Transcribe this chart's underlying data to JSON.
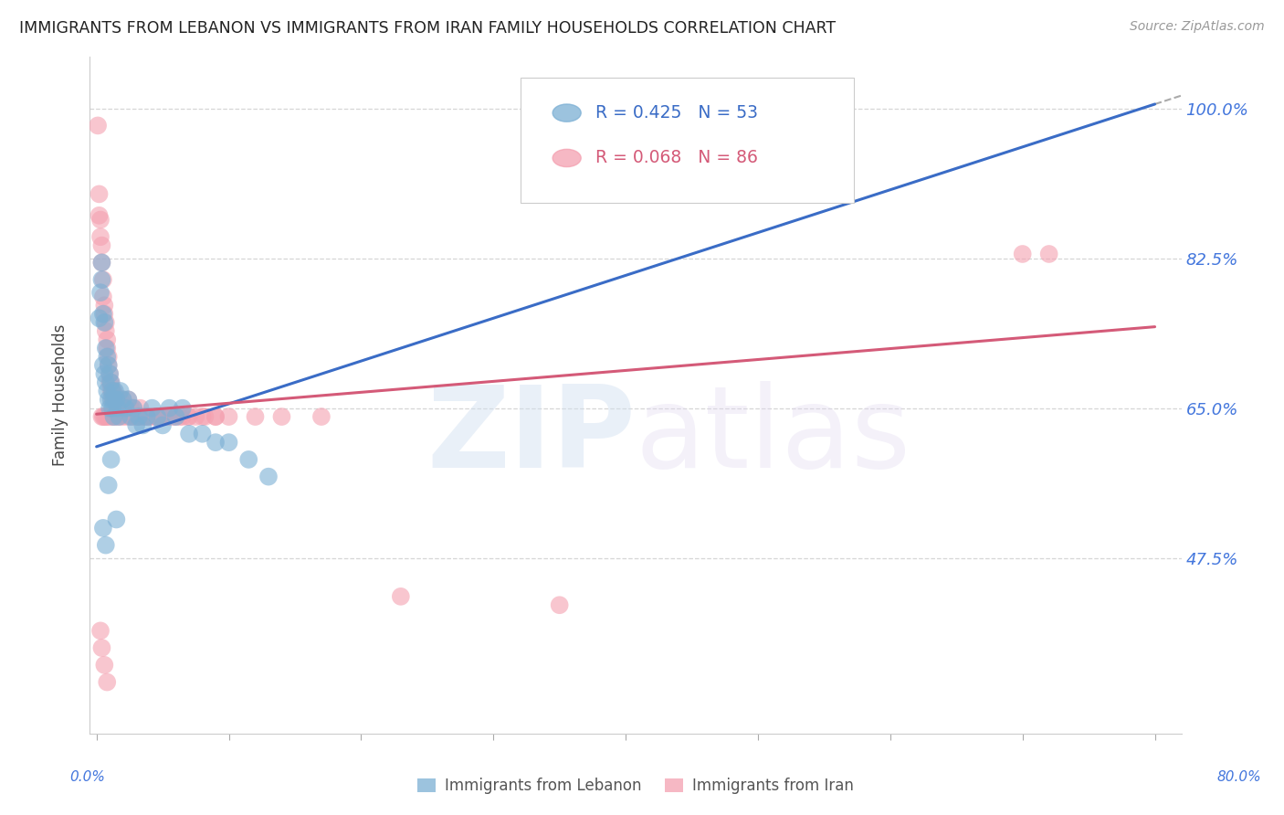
{
  "title": "IMMIGRANTS FROM LEBANON VS IMMIGRANTS FROM IRAN FAMILY HOUSEHOLDS CORRELATION CHART",
  "source": "Source: ZipAtlas.com",
  "ylabel": "Family Households",
  "xlim": [
    -0.005,
    0.82
  ],
  "ylim": [
    0.27,
    1.06
  ],
  "ytick_vals": [
    0.475,
    0.65,
    0.825,
    1.0
  ],
  "grid_color": "#cccccc",
  "lebanon_color": "#7bafd4",
  "iran_color": "#f4a0b0",
  "lebanon_R": 0.425,
  "lebanon_N": 53,
  "iran_R": 0.068,
  "iran_N": 86,
  "lebanon_line_x": [
    0.0,
    0.8
  ],
  "lebanon_line_y": [
    0.605,
    1.005
  ],
  "iran_line_x": [
    0.0,
    0.8
  ],
  "iran_line_y": [
    0.643,
    0.745
  ],
  "lebanon_scatter_x": [
    0.002,
    0.003,
    0.004,
    0.004,
    0.005,
    0.005,
    0.006,
    0.006,
    0.007,
    0.007,
    0.008,
    0.008,
    0.009,
    0.009,
    0.01,
    0.01,
    0.011,
    0.011,
    0.012,
    0.012,
    0.013,
    0.013,
    0.014,
    0.015,
    0.016,
    0.017,
    0.018,
    0.02,
    0.022,
    0.024,
    0.026,
    0.028,
    0.03,
    0.032,
    0.035,
    0.038,
    0.042,
    0.046,
    0.05,
    0.055,
    0.06,
    0.065,
    0.07,
    0.08,
    0.09,
    0.1,
    0.115,
    0.13,
    0.005,
    0.007,
    0.009,
    0.011,
    0.015
  ],
  "lebanon_scatter_y": [
    0.755,
    0.785,
    0.8,
    0.82,
    0.76,
    0.7,
    0.75,
    0.69,
    0.72,
    0.68,
    0.71,
    0.67,
    0.7,
    0.66,
    0.69,
    0.65,
    0.68,
    0.66,
    0.67,
    0.65,
    0.66,
    0.64,
    0.67,
    0.66,
    0.65,
    0.64,
    0.67,
    0.66,
    0.65,
    0.66,
    0.64,
    0.65,
    0.63,
    0.64,
    0.63,
    0.64,
    0.65,
    0.64,
    0.63,
    0.65,
    0.64,
    0.65,
    0.62,
    0.62,
    0.61,
    0.61,
    0.59,
    0.57,
    0.51,
    0.49,
    0.56,
    0.59,
    0.52
  ],
  "iran_scatter_x": [
    0.001,
    0.002,
    0.002,
    0.003,
    0.003,
    0.004,
    0.004,
    0.005,
    0.005,
    0.006,
    0.006,
    0.007,
    0.007,
    0.008,
    0.008,
    0.009,
    0.009,
    0.01,
    0.01,
    0.011,
    0.011,
    0.012,
    0.012,
    0.013,
    0.013,
    0.014,
    0.015,
    0.016,
    0.017,
    0.018,
    0.019,
    0.02,
    0.021,
    0.022,
    0.024,
    0.026,
    0.028,
    0.03,
    0.033,
    0.036,
    0.04,
    0.044,
    0.048,
    0.053,
    0.058,
    0.063,
    0.069,
    0.075,
    0.082,
    0.09,
    0.004,
    0.005,
    0.006,
    0.007,
    0.008,
    0.01,
    0.012,
    0.014,
    0.016,
    0.019,
    0.022,
    0.025,
    0.028,
    0.032,
    0.036,
    0.04,
    0.045,
    0.05,
    0.055,
    0.06,
    0.065,
    0.07,
    0.08,
    0.09,
    0.1,
    0.12,
    0.14,
    0.17,
    0.003,
    0.004,
    0.006,
    0.008,
    0.23,
    0.35,
    0.7,
    0.72
  ],
  "iran_scatter_y": [
    0.98,
    0.9,
    0.875,
    0.87,
    0.85,
    0.84,
    0.82,
    0.8,
    0.78,
    0.77,
    0.76,
    0.75,
    0.74,
    0.73,
    0.72,
    0.71,
    0.7,
    0.69,
    0.68,
    0.68,
    0.67,
    0.67,
    0.66,
    0.67,
    0.66,
    0.66,
    0.66,
    0.65,
    0.65,
    0.66,
    0.65,
    0.66,
    0.65,
    0.65,
    0.66,
    0.65,
    0.65,
    0.64,
    0.65,
    0.64,
    0.64,
    0.64,
    0.64,
    0.64,
    0.64,
    0.64,
    0.64,
    0.64,
    0.64,
    0.64,
    0.64,
    0.64,
    0.64,
    0.64,
    0.64,
    0.64,
    0.64,
    0.64,
    0.64,
    0.64,
    0.64,
    0.64,
    0.64,
    0.64,
    0.64,
    0.64,
    0.64,
    0.64,
    0.64,
    0.64,
    0.64,
    0.64,
    0.64,
    0.64,
    0.64,
    0.64,
    0.64,
    0.64,
    0.39,
    0.37,
    0.35,
    0.33,
    0.43,
    0.42,
    0.83,
    0.83
  ]
}
